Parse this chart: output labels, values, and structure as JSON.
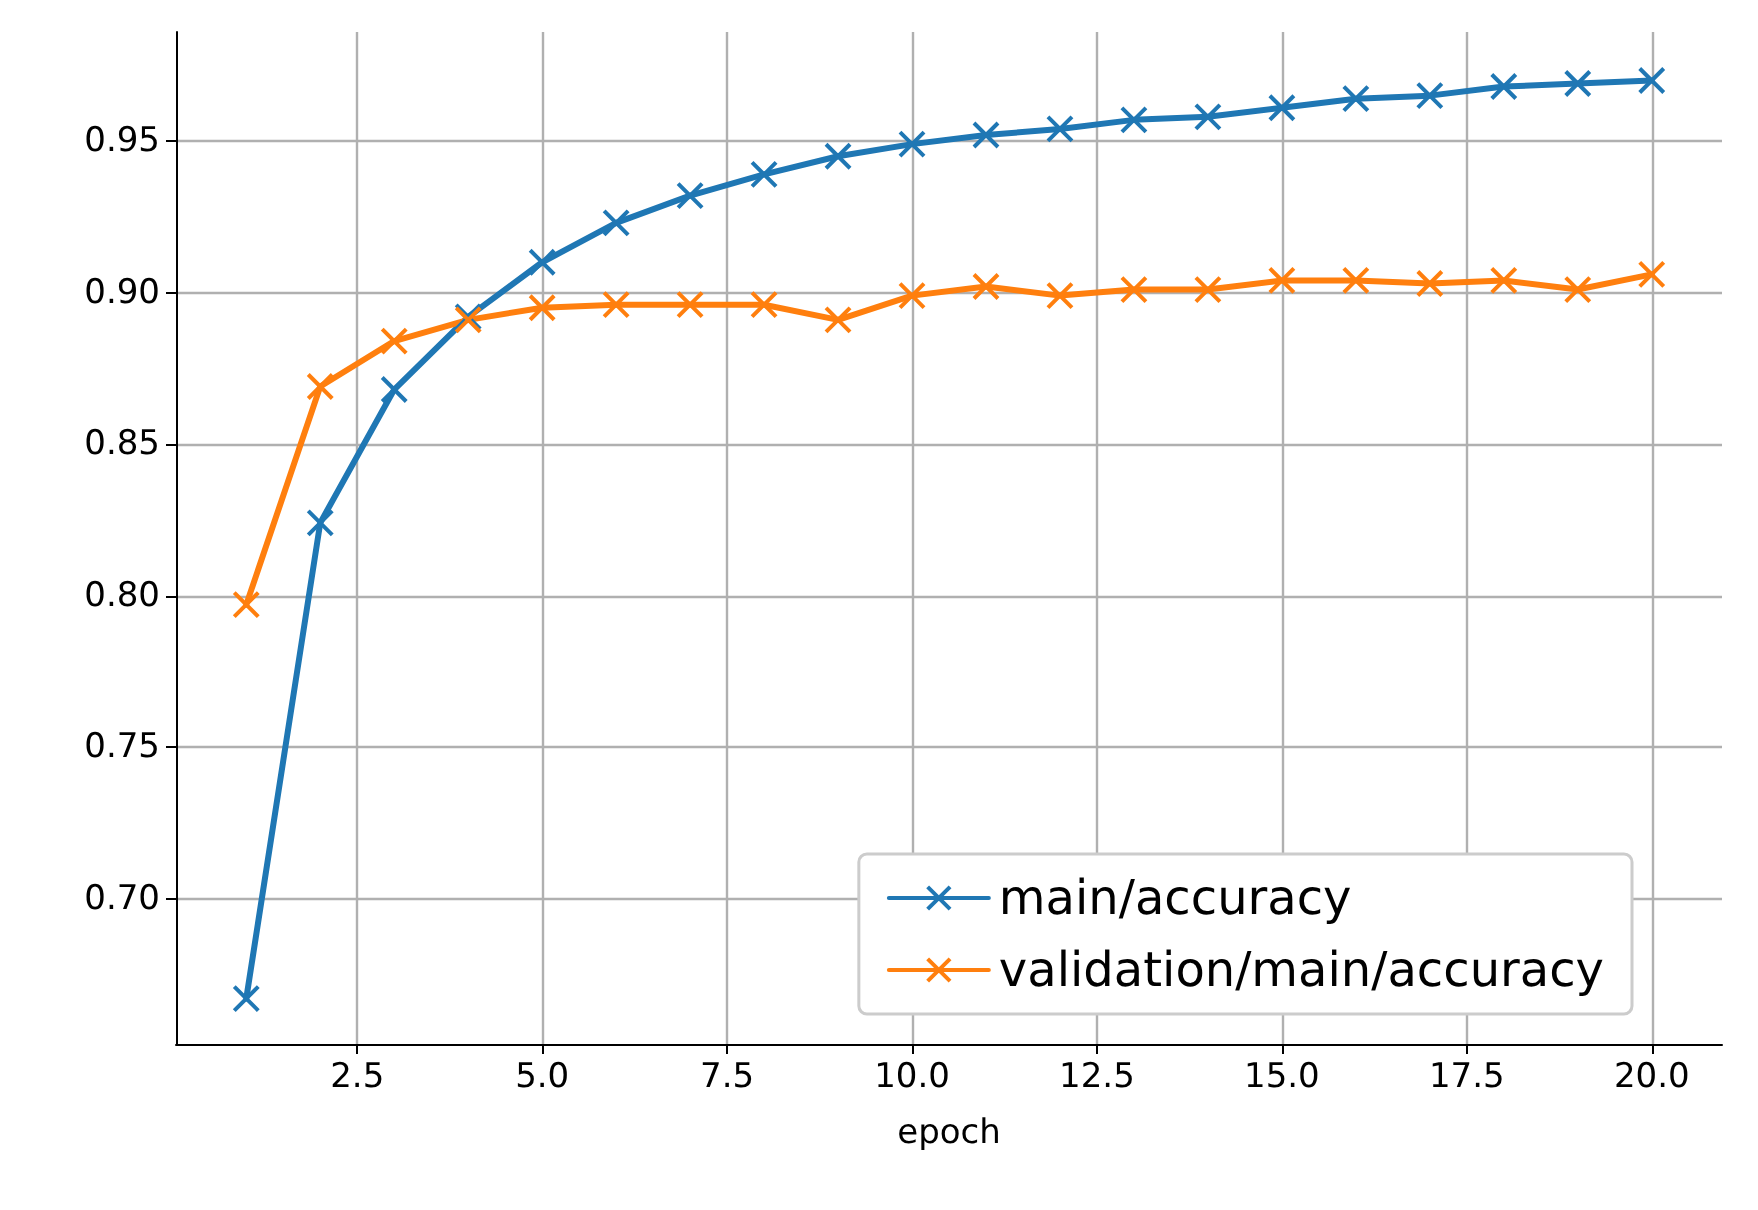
{
  "chart_data": {
    "type": "line",
    "xlabel": "epoch",
    "x": [
      1,
      2,
      3,
      4,
      5,
      6,
      7,
      8,
      9,
      10,
      11,
      12,
      13,
      14,
      15,
      16,
      17,
      18,
      19,
      20
    ],
    "series": [
      {
        "name": "main/accuracy",
        "color": "#1f77b4",
        "values": [
          0.667,
          0.824,
          0.868,
          0.892,
          0.91,
          0.923,
          0.932,
          0.939,
          0.945,
          0.949,
          0.952,
          0.954,
          0.957,
          0.958,
          0.961,
          0.964,
          0.965,
          0.968,
          0.969,
          0.97
        ]
      },
      {
        "name": "validation/main/accuracy",
        "color": "#ff7f0e",
        "values": [
          0.797,
          0.869,
          0.884,
          0.891,
          0.895,
          0.896,
          0.896,
          0.896,
          0.891,
          0.899,
          0.902,
          0.899,
          0.901,
          0.901,
          0.904,
          0.904,
          0.903,
          0.904,
          0.901,
          0.906
        ]
      }
    ],
    "xlim": [
      0.05,
      20.95
    ],
    "ylim": [
      0.652,
      0.986
    ],
    "xticks": [
      {
        "value": 2.5,
        "label": "2.5"
      },
      {
        "value": 5,
        "label": "5.0"
      },
      {
        "value": 7.5,
        "label": "7.5"
      },
      {
        "value": 10,
        "label": "10.0"
      },
      {
        "value": 12.5,
        "label": "12.5"
      },
      {
        "value": 15,
        "label": "15.0"
      },
      {
        "value": 17.5,
        "label": "17.5"
      },
      {
        "value": 20,
        "label": "20.0"
      }
    ],
    "yticks": [
      {
        "value": 0.7,
        "label": "0.70"
      },
      {
        "value": 0.75,
        "label": "0.75"
      },
      {
        "value": 0.8,
        "label": "0.80"
      },
      {
        "value": 0.85,
        "label": "0.85"
      },
      {
        "value": 0.9,
        "label": "0.90"
      },
      {
        "value": 0.95,
        "label": "0.95"
      }
    ],
    "grid": true,
    "legend": "bottom right",
    "marker": "cross",
    "line_style": "solid"
  }
}
